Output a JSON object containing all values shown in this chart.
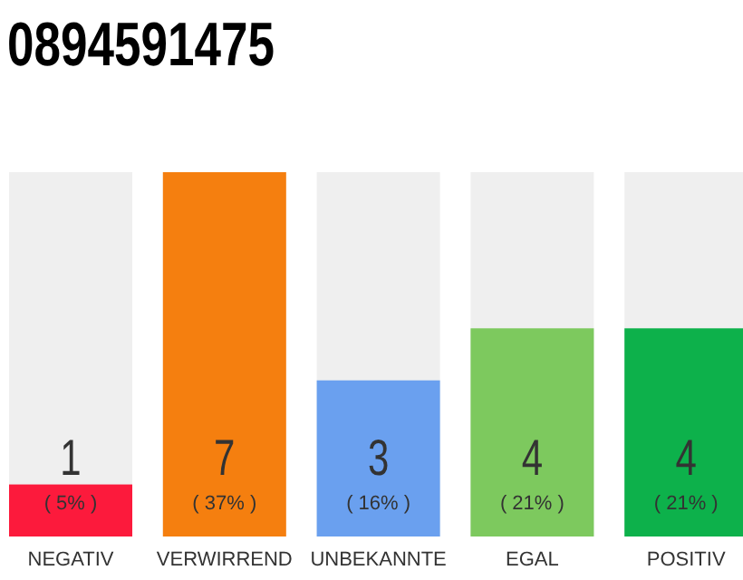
{
  "chart_data": {
    "type": "bar",
    "title": "0894591475",
    "categories": [
      "NEGATIV",
      "VERWIRREND",
      "UNBEKANNTE",
      "EGAL",
      "POSITIV"
    ],
    "values": [
      1,
      7,
      3,
      4,
      4
    ],
    "colors": [
      "#fc1a3c",
      "#f57f0f",
      "#6aa0ef",
      "#7dc95e",
      "#0db14b"
    ],
    "ylim": [
      0,
      7
    ],
    "data_labels": true,
    "grid": false,
    "annotations": [
      "( 5% )",
      "( 37% )",
      "( 16% )",
      "( 21% )",
      "( 21% )"
    ]
  }
}
